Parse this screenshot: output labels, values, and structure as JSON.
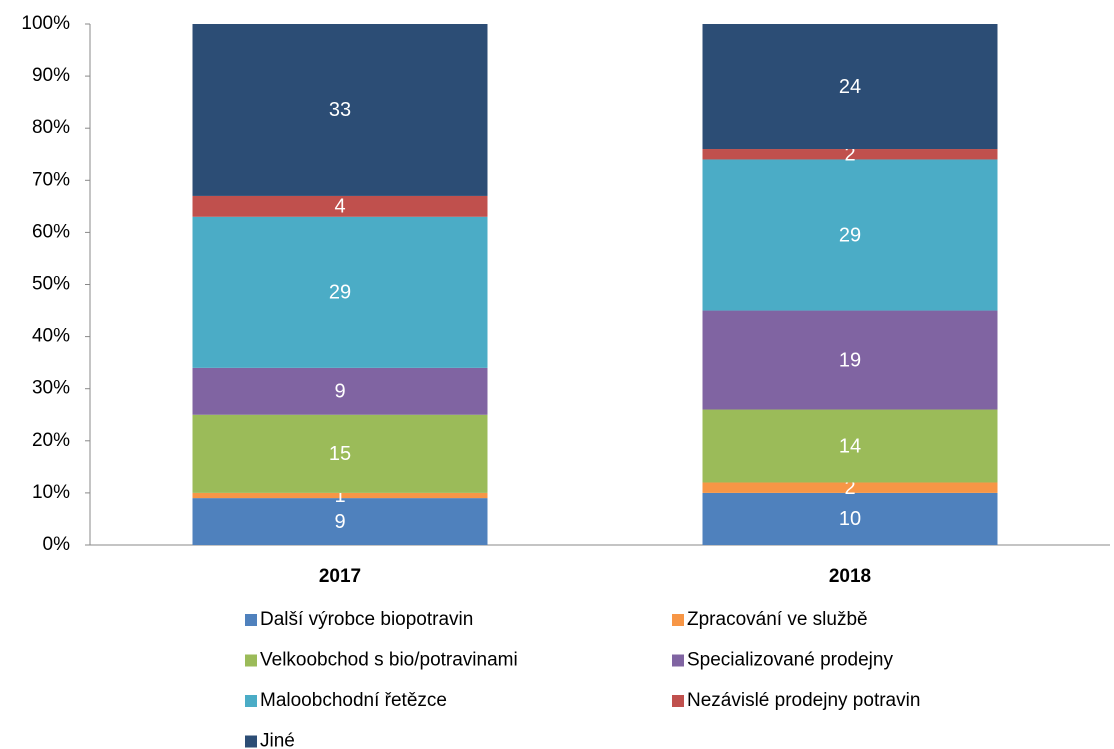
{
  "chart_data": {
    "type": "stacked_bar",
    "categories": [
      "2017",
      "2018"
    ],
    "series": [
      {
        "name": "Další výrobce biopotravin",
        "color": "#4f81bd",
        "values": [
          9,
          10
        ]
      },
      {
        "name": "Zpracování ve službě",
        "color": "#f79646",
        "values": [
          1,
          2
        ]
      },
      {
        "name": "Velkoobchod s bio/potravinami",
        "color": "#9bbb59",
        "values": [
          15,
          14
        ]
      },
      {
        "name": "Specializované prodejny",
        "color": "#8064a2",
        "values": [
          9,
          19
        ]
      },
      {
        "name": "Maloobchodní řetězce",
        "color": "#4bacc6",
        "values": [
          29,
          29
        ]
      },
      {
        "name": "Nezávislé prodejny potravin",
        "color": "#c0504d",
        "values": [
          4,
          2
        ]
      },
      {
        "name": "Jiné",
        "color": "#2c4d75",
        "values": [
          33,
          24
        ]
      }
    ],
    "ylim": [
      0,
      100
    ],
    "yticks": [
      {
        "value": 0,
        "label": "0%"
      },
      {
        "value": 10,
        "label": "10%"
      },
      {
        "value": 20,
        "label": "20%"
      },
      {
        "value": 30,
        "label": "30%"
      },
      {
        "value": 40,
        "label": "40%"
      },
      {
        "value": 50,
        "label": "50%"
      },
      {
        "value": 60,
        "label": "60%"
      },
      {
        "value": 70,
        "label": "70%"
      },
      {
        "value": 80,
        "label": "80%"
      },
      {
        "value": 90,
        "label": "90%"
      },
      {
        "value": 100,
        "label": "100%"
      }
    ],
    "grid": false,
    "legend": "bottom"
  }
}
